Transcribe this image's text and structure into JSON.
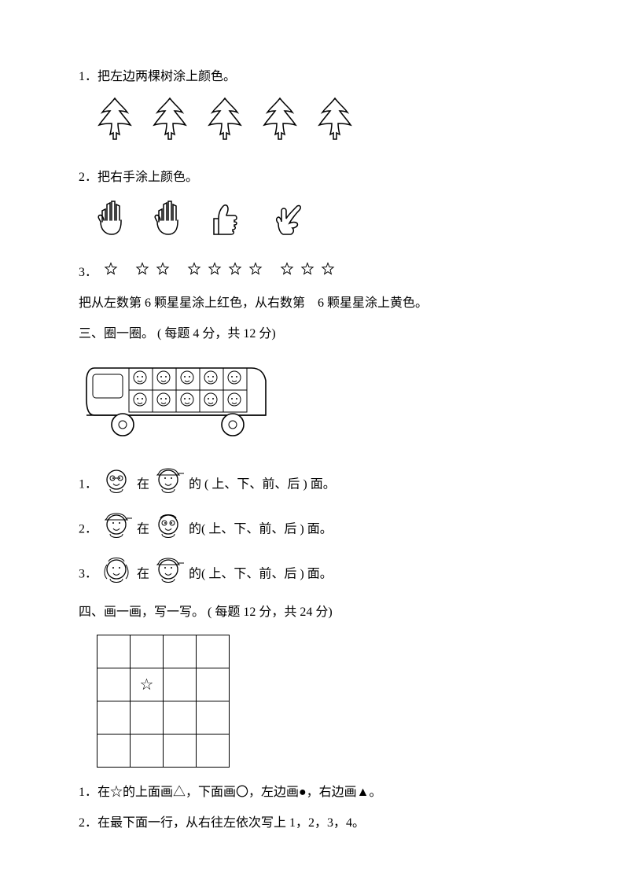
{
  "q1": {
    "num": "1．",
    "text": "把左边两棵树涂上颜色。",
    "tree_count": 5
  },
  "q2": {
    "num": "2．",
    "text": "把右手涂上颜色。"
  },
  "q3": {
    "num": "3．",
    "groups": [
      1,
      2,
      4,
      3
    ],
    "instr_a": "把从左数第 6 颗星星涂上红色，从右数第",
    "instr_b": "6 颗星星涂上黄色。"
  },
  "sec3": {
    "title": "三、圈一圈。 ( 每题 4 分，共 12 分)"
  },
  "s3q1": {
    "num": "1．",
    "mid": "在",
    "tail": "的 ( 上、下、前、后 ) 面。"
  },
  "s3q2": {
    "num": "2．",
    "mid": "在",
    "tail": "的( 上、下、前、后 ) 面。"
  },
  "s3q3": {
    "num": "3．",
    "mid": "在",
    "tail": "的( 上、下、前、后 ) 面。"
  },
  "sec4": {
    "title": "四、画一画，写一写。  ( 每题 12 分，共 24 分)"
  },
  "s4q1": {
    "num": "1．",
    "text": "在☆的上面画△，下面画〇，左边画●，右边画▲。"
  },
  "s4q2": {
    "num": "2．",
    "text": "在最下面一行，从右往左依次写上   1，2，3，4。"
  },
  "grid_star": "☆",
  "colors": {
    "stroke": "#000000",
    "bg": "#ffffff"
  }
}
